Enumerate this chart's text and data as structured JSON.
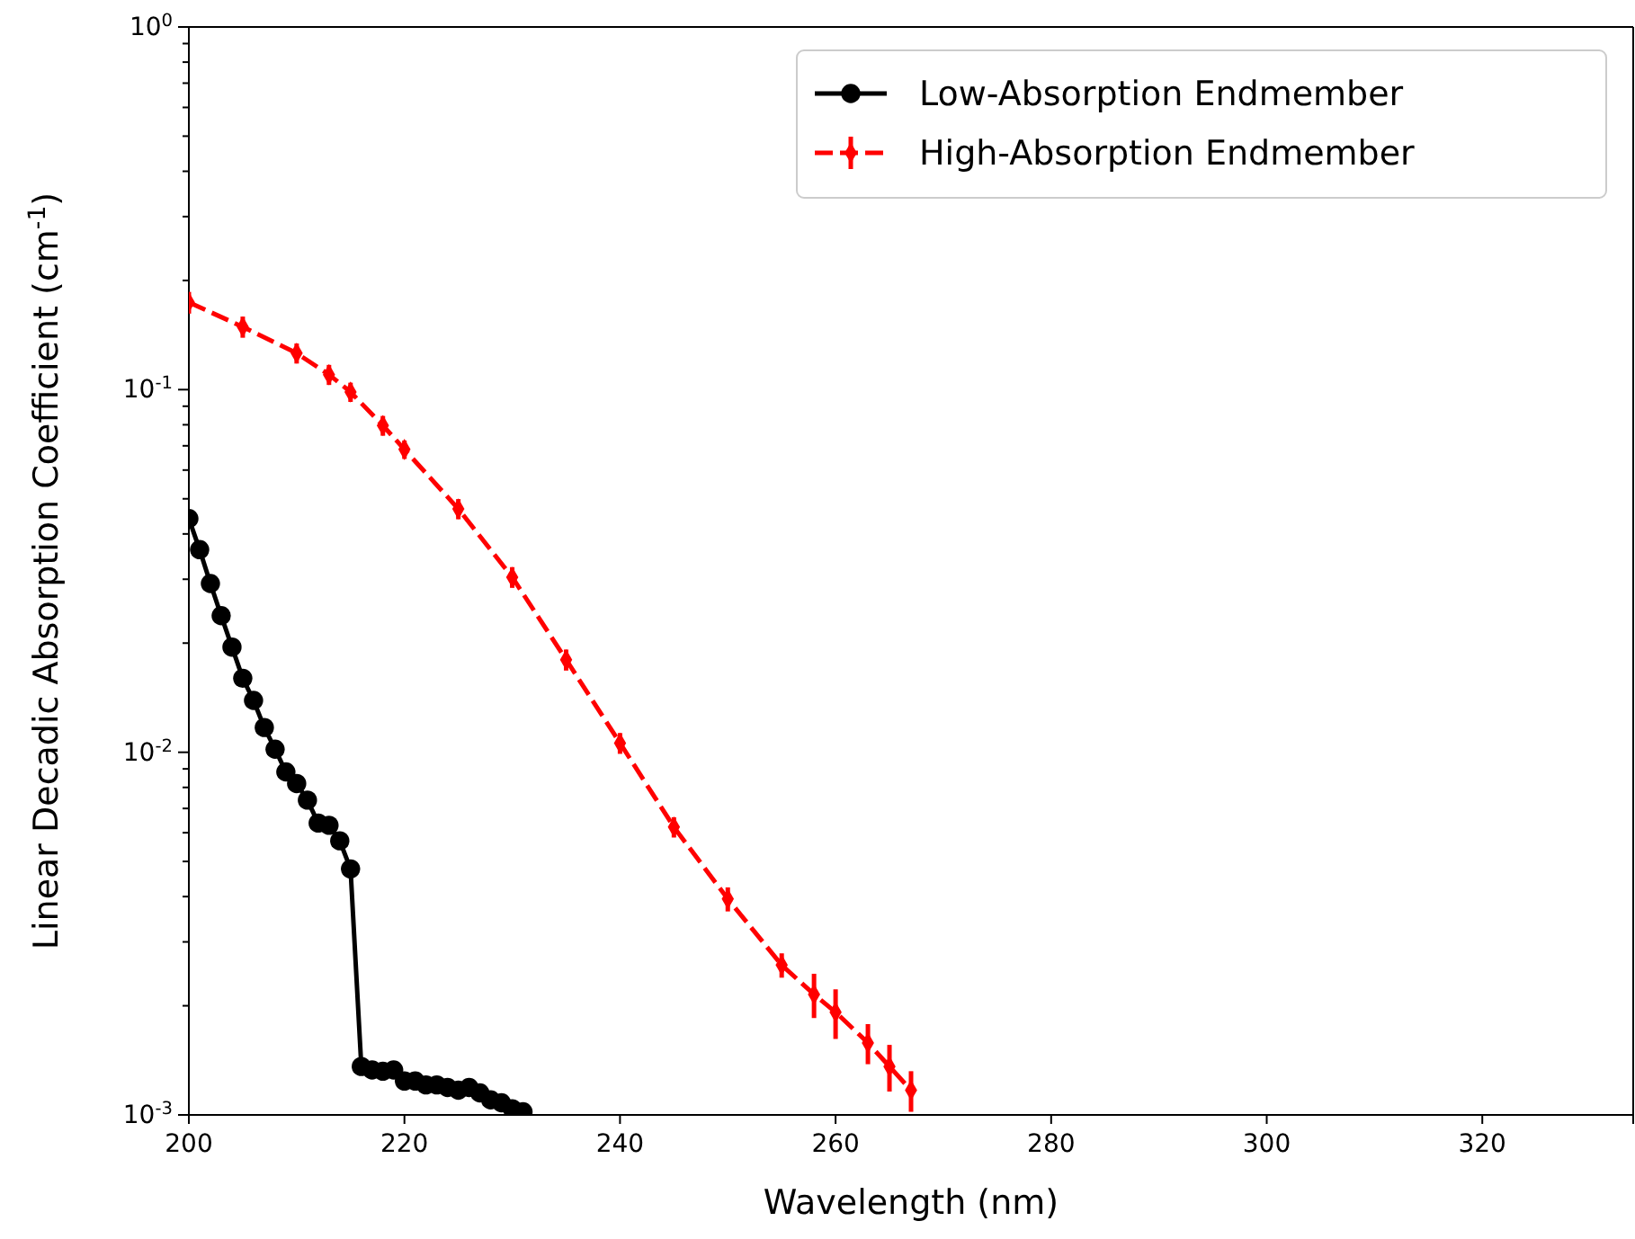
{
  "chart_data": {
    "type": "line",
    "xlabel": "Wavelength (nm)",
    "ylabel": "Linear Decadic Absorption Coefficient (cm$^{-1}$)",
    "log": "y",
    "xlim": [
      200,
      334
    ],
    "xticks": [
      200,
      220,
      240,
      260,
      280,
      300,
      320
    ],
    "ylim": [
      0.001,
      1
    ],
    "yticks": [
      {
        "value": 0.001,
        "label": "10$^{-3}$"
      },
      {
        "value": 0.002,
        "label": null
      },
      {
        "value": 0.003,
        "label": null
      },
      {
        "value": 0.004,
        "label": null
      },
      {
        "value": 0.005,
        "label": null
      },
      {
        "value": 0.006,
        "label": null
      },
      {
        "value": 0.007,
        "label": null
      },
      {
        "value": 0.008,
        "label": null
      },
      {
        "value": 0.009,
        "label": null
      },
      {
        "value": 0.01,
        "label": "10$^{-2}$"
      },
      {
        "value": 0.02,
        "label": null
      },
      {
        "value": 0.03,
        "label": null
      },
      {
        "value": 0.04,
        "label": null
      },
      {
        "value": 0.05,
        "label": null
      },
      {
        "value": 0.06,
        "label": null
      },
      {
        "value": 0.07,
        "label": null
      },
      {
        "value": 0.08,
        "label": null
      },
      {
        "value": 0.09,
        "label": null
      },
      {
        "value": 0.1,
        "label": "10$^{-1}$"
      },
      {
        "value": 0.2,
        "label": null
      },
      {
        "value": 0.3,
        "label": null
      },
      {
        "value": 0.4,
        "label": null
      },
      {
        "value": 0.5,
        "label": null
      },
      {
        "value": 0.6,
        "label": null
      },
      {
        "value": 0.7,
        "label": null
      },
      {
        "value": 0.8,
        "label": null
      },
      {
        "value": 0.9,
        "label": null
      },
      {
        "value": 1,
        "label": "10$^{0}$"
      }
    ],
    "legend": "top right",
    "grid": false,
    "series": [
      {
        "name": "Low-Absorption Endmember",
        "color": "#000000",
        "marker": "circle",
        "line_style": "solid",
        "x": [
          200,
          201,
          202,
          203,
          204,
          205,
          206,
          207,
          208,
          209,
          210,
          211,
          212,
          213,
          214,
          215,
          216,
          217,
          218,
          219,
          220,
          221,
          222,
          223,
          224,
          225,
          226,
          227,
          228,
          229,
          230,
          231
        ],
        "values": [
          0.0441,
          0.0362,
          0.0292,
          0.0238,
          0.0195,
          0.016,
          0.0139,
          0.0117,
          0.0102,
          0.00883,
          0.0082,
          0.00738,
          0.00638,
          0.00629,
          0.0057,
          0.00477,
          0.00136,
          0.00133,
          0.00132,
          0.00133,
          0.00124,
          0.00124,
          0.00121,
          0.00121,
          0.00119,
          0.00117,
          0.00119,
          0.00115,
          0.0011,
          0.00108,
          0.00104,
          0.00102
        ]
      },
      {
        "name": "High-Absorption Endmember",
        "color": "#ff0000",
        "marker": "diamond",
        "line_style": "dashed",
        "x": [
          200,
          205,
          210,
          213,
          215,
          218,
          220,
          225,
          230,
          235,
          240,
          245,
          250,
          255,
          258,
          260,
          263,
          265,
          267
        ],
        "values": [
          0.174,
          0.149,
          0.126,
          0.11,
          0.0985,
          0.0796,
          0.0684,
          0.0469,
          0.0304,
          0.018,
          0.0106,
          0.00622,
          0.00394,
          0.00259,
          0.00215,
          0.00192,
          0.00158,
          0.00136,
          0.00117
        ],
        "errors": [
          0.012,
          0.01,
          0.008,
          0.007,
          0.006,
          0.005,
          0.004,
          0.003,
          0.002,
          0.0012,
          0.0007,
          0.0004,
          0.0003,
          0.0002,
          0.0003,
          0.0003,
          0.0002,
          0.0002,
          0.00015
        ]
      }
    ]
  }
}
